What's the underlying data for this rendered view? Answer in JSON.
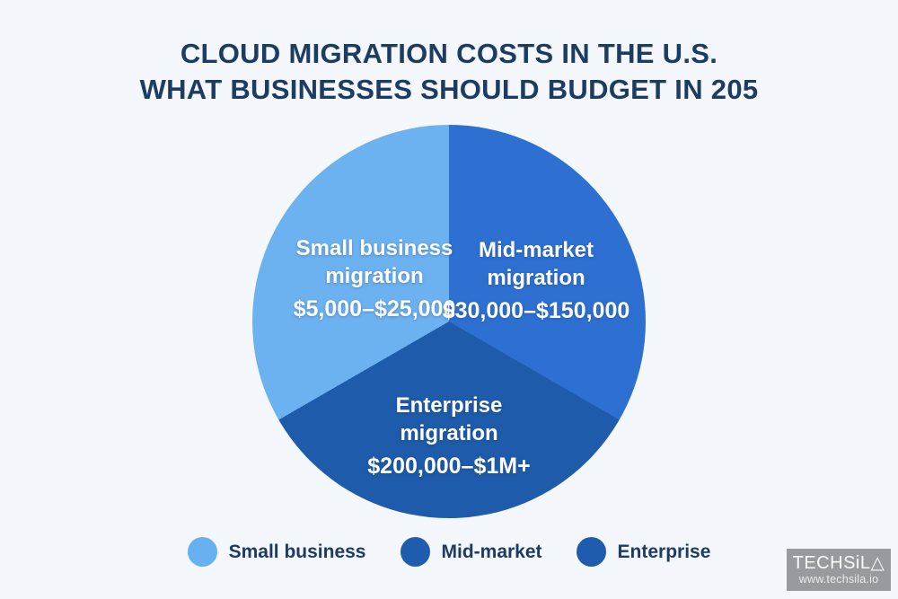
{
  "title": {
    "line1": "CLOUD MIGRATION COSTS IN THE U.S.",
    "line2": "WHAT BUSINESSES SHOULD BUDGET IN 205"
  },
  "chart_data": {
    "type": "pie",
    "title": "CLOUD MIGRATION COSTS IN THE U.S. WHAT BUSINESSES SHOULD BUDGET IN 205",
    "slices": [
      {
        "label": "Small business migration",
        "range": "$5,000–$25,000",
        "percent": 33.3,
        "start_angle": 240,
        "end_angle": 360,
        "color": "#6db2f0"
      },
      {
        "label": "Mid-market migration",
        "range": "$30,000–$150,000",
        "percent": 33.3,
        "start_angle": 0,
        "end_angle": 120,
        "color": "#2e70d1"
      },
      {
        "label": "Enterprise migration",
        "range": "$200,000–$1M+",
        "percent": 33.4,
        "start_angle": 120,
        "end_angle": 240,
        "color": "#1e5baa"
      }
    ],
    "legend": [
      {
        "label": "Small business",
        "color": "#68b1f0"
      },
      {
        "label": "Mid-market",
        "color": "#1f5cad"
      },
      {
        "label": "Enterprise",
        "color": "#1f5cad"
      }
    ],
    "legend_position": "bottom",
    "label_position": "inside",
    "background_color": "#f4f7fb",
    "title_color": "#1d3c63"
  },
  "watermark": {
    "brand": "TECHSiL△",
    "url": "www.techsila.io",
    "background_color": "#989aa0"
  }
}
